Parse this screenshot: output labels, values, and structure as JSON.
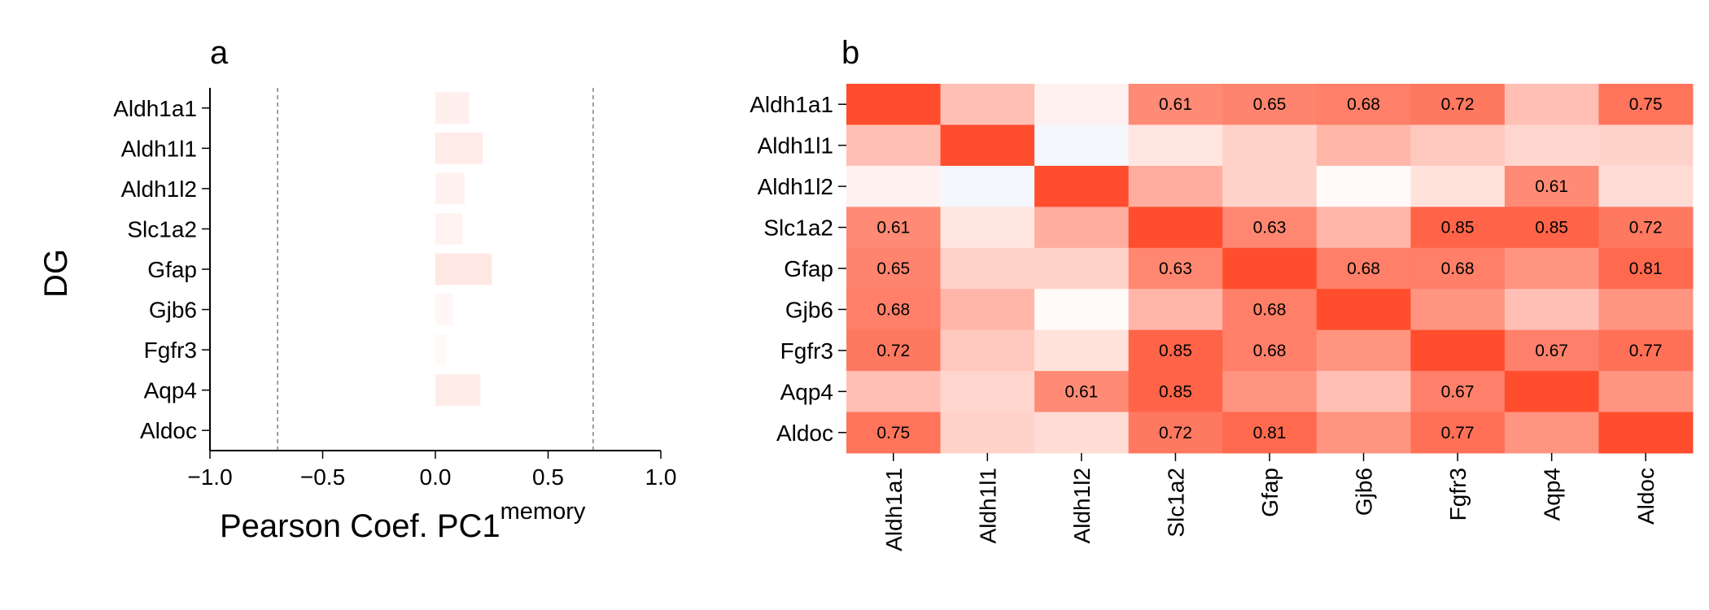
{
  "panels": {
    "a": "a",
    "b": "b"
  },
  "chart_data": [
    {
      "type": "bar",
      "orientation": "horizontal",
      "panel": "a",
      "ylabel": "DG",
      "xlabel_main": "Pearson Coef. PC1",
      "xlabel_superscript": "memory",
      "categories": [
        "Aldh1a1",
        "Aldh1l1",
        "Aldh1l2",
        "Slc1a2",
        "Gfap",
        "Gjb6",
        "Fgfr3",
        "Aqp4",
        "Aldoc"
      ],
      "values": [
        0.15,
        0.21,
        0.13,
        0.12,
        0.25,
        0.08,
        0.05,
        0.2,
        -0.03
      ],
      "xlim": [
        -1.0,
        1.0
      ],
      "xticks": [
        -1.0,
        -0.5,
        0.0,
        0.5,
        1.0
      ],
      "xtick_labels": [
        "−1.0",
        "−0.5",
        "0.0",
        "0.5",
        "1.0"
      ],
      "reference_lines": [
        -0.7,
        0.7
      ],
      "grid": false
    },
    {
      "type": "heatmap",
      "panel": "b",
      "rows": [
        "Aldh1a1",
        "Aldh1l1",
        "Aldh1l2",
        "Slc1a2",
        "Gfap",
        "Gjb6",
        "Fgfr3",
        "Aqp4",
        "Aldoc"
      ],
      "columns": [
        "Aldh1a1",
        "Aldh1l1",
        "Aldh1l2",
        "Slc1a2",
        "Gfap",
        "Gjb6",
        "Fgfr3",
        "Aqp4",
        "Aldoc"
      ],
      "values": [
        [
          1.0,
          0.3,
          0.05,
          0.61,
          0.65,
          0.68,
          0.72,
          0.3,
          0.75
        ],
        [
          0.3,
          1.0,
          -0.1,
          0.1,
          0.2,
          0.35,
          0.25,
          0.18,
          0.2
        ],
        [
          0.05,
          -0.1,
          1.0,
          0.4,
          0.2,
          0.02,
          0.12,
          0.61,
          0.15
        ],
        [
          0.61,
          0.1,
          0.4,
          1.0,
          0.63,
          0.35,
          0.85,
          0.85,
          0.72
        ],
        [
          0.65,
          0.2,
          0.2,
          0.63,
          1.0,
          0.68,
          0.68,
          0.55,
          0.81
        ],
        [
          0.68,
          0.35,
          0.02,
          0.35,
          0.68,
          1.0,
          0.55,
          0.3,
          0.55
        ],
        [
          0.72,
          0.25,
          0.12,
          0.85,
          0.68,
          0.55,
          1.0,
          0.67,
          0.77
        ],
        [
          0.3,
          0.18,
          0.61,
          0.85,
          0.55,
          0.3,
          0.67,
          1.0,
          0.55
        ],
        [
          0.75,
          0.2,
          0.15,
          0.72,
          0.81,
          0.55,
          0.77,
          0.55,
          1.0
        ]
      ],
      "annotation_threshold": 0.6,
      "colormap": {
        "low": "#2166ac",
        "mid": "#ffffff",
        "high": "#ff4d2d"
      },
      "vmin": -1.0,
      "vmax": 1.0
    }
  ]
}
